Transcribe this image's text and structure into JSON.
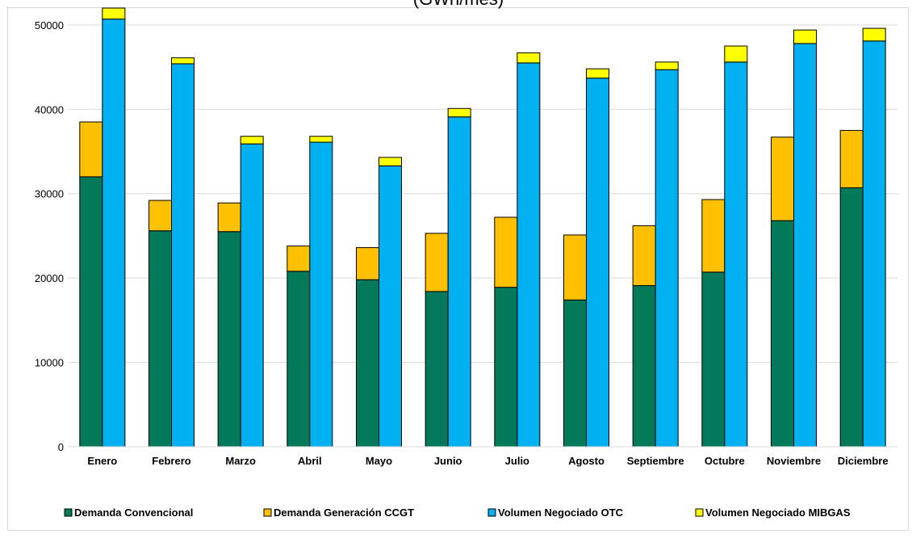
{
  "chart_data": {
    "type": "bar",
    "stacked": true,
    "title": "(GWh/mes)",
    "xlabel": "",
    "ylabel": "",
    "ylim": [
      0,
      52000
    ],
    "yticks": [
      0,
      10000,
      20000,
      30000,
      40000,
      50000
    ],
    "grid": true,
    "legend_position": "bottom",
    "categories": [
      "Enero",
      "Febrero",
      "Marzo",
      "Abril",
      "Mayo",
      "Junio",
      "Julio",
      "Agosto",
      "Septiembre",
      "Octubre",
      "Noviembre",
      "Diciembre"
    ],
    "groups": [
      {
        "stack": "demanda",
        "series": [
          {
            "name": "Demanda Convencional",
            "color": "#027A5A",
            "values": [
              32000,
              25600,
              25500,
              20800,
              19800,
              18400,
              18900,
              17400,
              19100,
              20700,
              26800,
              30700
            ]
          },
          {
            "name": "Demanda Generación CCGT",
            "color": "#FFC000",
            "values": [
              6500,
              3600,
              3400,
              3000,
              3800,
              6900,
              8300,
              7700,
              7100,
              8600,
              9900,
              6800
            ]
          }
        ]
      },
      {
        "stack": "volumen",
        "series": [
          {
            "name": "Volumen Negociado OTC",
            "color": "#00B0F0",
            "values": [
              50700,
              45400,
              35900,
              36100,
              33300,
              39100,
              45500,
              43700,
              44700,
              45600,
              47800,
              48100
            ]
          },
          {
            "name": "Volumen Negociado MIBGAS",
            "color": "#FFFF00",
            "values": [
              1300,
              700,
              900,
              700,
              1000,
              1000,
              1200,
              1100,
              900,
              1900,
              1600,
              1500
            ]
          }
        ]
      }
    ],
    "legend": [
      "Demanda Convencional",
      "Demanda Generación CCGT",
      "Volumen Negociado OTC",
      "Volumen Negociado MIBGAS"
    ]
  }
}
